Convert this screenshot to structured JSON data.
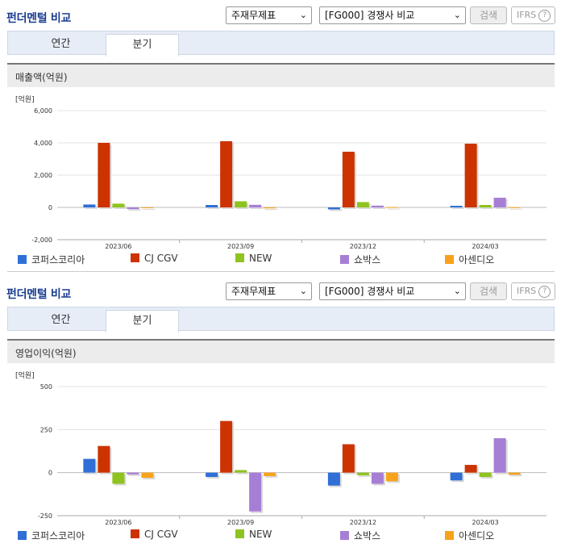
{
  "sections": [
    {
      "title": "펀더멘털 비교",
      "select1": "주재무제표",
      "select2": "[FG000] 경쟁사 비교",
      "search_label": "검색",
      "ifrs_label": "IFRS",
      "help_glyph": "?",
      "tabs": [
        "연간",
        "분기"
      ],
      "active_tab": 1,
      "metric": "매출액(억원)"
    },
    {
      "title": "펀더멘털 비교",
      "select1": "주재무제표",
      "select2": "[FG000] 경쟁사 비교",
      "search_label": "검색",
      "ifrs_label": "IFRS",
      "help_glyph": "?",
      "tabs": [
        "연간",
        "분기"
      ],
      "active_tab": 1,
      "metric": "영업이익(억원)"
    }
  ],
  "colors": {
    "코퍼스코리아": "#2f6fd6",
    "CJ CGV": "#cc3300",
    "NEW": "#8fc31f",
    "쇼박스": "#a77ed6",
    "아센디오": "#f7a21b"
  },
  "chart_data": [
    {
      "type": "bar",
      "unit_label": "[억원]",
      "categories": [
        "2023/06",
        "2023/09",
        "2023/12",
        "2024/03"
      ],
      "ylim": [
        -2000,
        6000
      ],
      "yticks": [
        -2000,
        0,
        2000,
        4000,
        6000
      ],
      "ytick_labels": [
        "-2,000",
        "0",
        "2,000",
        "4,000",
        "6,000"
      ],
      "grid": true,
      "legend": "bottom",
      "series": [
        {
          "name": "코퍼스코리아",
          "values": [
            180,
            150,
            -120,
            100
          ]
        },
        {
          "name": "CJ CGV",
          "values": [
            4000,
            4100,
            3450,
            3950
          ]
        },
        {
          "name": "NEW",
          "values": [
            230,
            380,
            330,
            150
          ]
        },
        {
          "name": "쇼박스",
          "values": [
            -100,
            160,
            110,
            600
          ]
        },
        {
          "name": "아센디오",
          "values": [
            -40,
            -60,
            20,
            10
          ]
        }
      ]
    },
    {
      "type": "bar",
      "unit_label": "[억원]",
      "categories": [
        "2023/06",
        "2023/09",
        "2023/12",
        "2024/03"
      ],
      "ylim": [
        -250,
        500
      ],
      "yticks": [
        -250,
        0,
        250,
        500
      ],
      "ytick_labels": [
        "-250",
        "0",
        "250",
        "500"
      ],
      "grid": true,
      "legend": "bottom",
      "series": [
        {
          "name": "코퍼스코리아",
          "values": [
            80,
            -25,
            -75,
            -45
          ]
        },
        {
          "name": "CJ CGV",
          "values": [
            155,
            300,
            165,
            45
          ]
        },
        {
          "name": "NEW",
          "values": [
            -65,
            15,
            -15,
            -25
          ]
        },
        {
          "name": "쇼박스",
          "values": [
            -10,
            -225,
            -65,
            200
          ]
        },
        {
          "name": "아센디오",
          "values": [
            -30,
            -20,
            -50,
            -12
          ]
        }
      ]
    }
  ]
}
